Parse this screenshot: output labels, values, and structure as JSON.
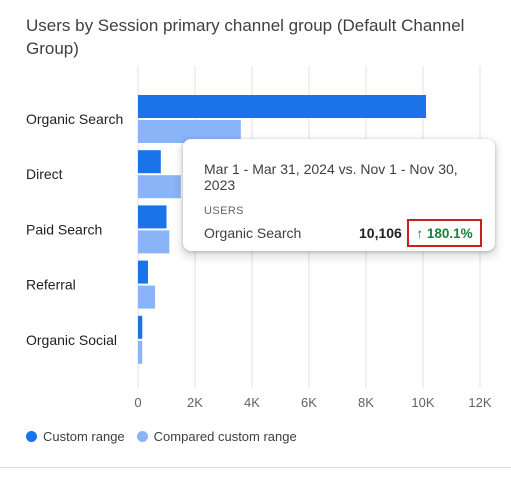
{
  "card": {
    "title": "Users by Session primary channel group (Default Channel Group)"
  },
  "chart_data": {
    "type": "bar",
    "orientation": "horizontal",
    "title": "Users by Session primary channel group (Default Channel Group)",
    "categories": [
      "Organic Search",
      "Direct",
      "Paid Search",
      "Referral",
      "Organic Social"
    ],
    "series": [
      {
        "name": "Custom range",
        "color": "#1a73e8",
        "values": [
          10106,
          800,
          1000,
          350,
          150
        ]
      },
      {
        "name": "Compared custom range",
        "color": "#8ab4f8",
        "values": [
          3608,
          1500,
          1100,
          600,
          150
        ]
      }
    ],
    "x_ticks": [
      "0",
      "2K",
      "4K",
      "6K",
      "8K",
      "10K",
      "12K"
    ],
    "x_tick_values": [
      0,
      2000,
      4000,
      6000,
      8000,
      10000,
      12000
    ],
    "xlim": [
      0,
      12000
    ],
    "grid": "vertical",
    "legend_position": "bottom-left"
  },
  "legend": {
    "items": [
      {
        "label": "Custom range",
        "color": "#1a73e8"
      },
      {
        "label": "Compared custom range",
        "color": "#8ab4f8"
      }
    ]
  },
  "tooltip": {
    "date_range": "Mar 1 - Mar 31, 2024 vs. Nov 1 - Nov 30, 2023",
    "metric": "USERS",
    "row_name": "Organic Search",
    "row_value": "10,106",
    "change": "↑ 180.1%",
    "change_color": "#188038",
    "highlight_color": "#c5221f"
  }
}
